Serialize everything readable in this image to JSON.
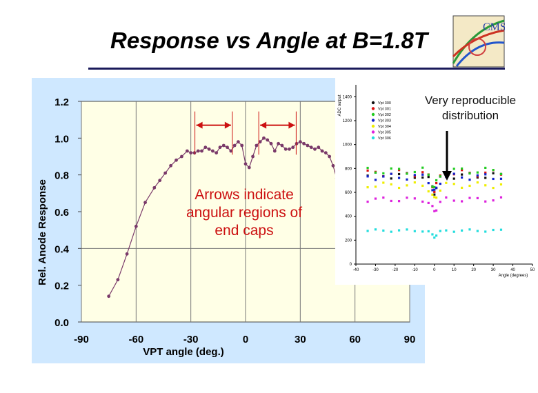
{
  "slide": {
    "title": "Response vs Angle at B=1.8T"
  },
  "logo": {
    "text": "CMS"
  },
  "annotations": {
    "arrows_note": [
      "Arrows indicate",
      "angular regions of",
      "end caps"
    ],
    "repro_note": [
      "Very reproducible",
      "distribution"
    ]
  },
  "chart_data": [
    {
      "type": "line",
      "title": "",
      "xlabel": "VPT angle (deg.)",
      "ylabel": "Rel. Anode Response",
      "xlim": [
        -90,
        90
      ],
      "ylim": [
        0.0,
        1.2
      ],
      "x_ticks": [
        -90,
        -60,
        -30,
        0,
        30,
        60,
        90
      ],
      "y_ticks": [
        0.0,
        0.2,
        0.4,
        0.6,
        0.8,
        1.0,
        1.2
      ],
      "grid": "vertical lines at x ticks, horizontal line at y=0.4",
      "series": [
        {
          "color": "#7a3a6a",
          "x": [
            -75,
            -70,
            -65,
            -60,
            -55,
            -50,
            -47,
            -44,
            -41,
            -38,
            -35,
            -32,
            -30,
            -28,
            -26,
            -24,
            -22,
            -20,
            -18,
            -16,
            -14,
            -12,
            -10,
            -8,
            -6,
            -4,
            -2,
            0,
            2,
            4,
            6,
            8,
            10,
            12,
            14,
            16,
            18,
            20,
            22,
            24,
            26,
            28,
            30,
            32,
            34,
            36,
            38,
            40,
            42,
            44,
            46,
            48,
            50,
            52
          ],
          "y": [
            0.14,
            0.23,
            0.37,
            0.52,
            0.65,
            0.73,
            0.77,
            0.81,
            0.85,
            0.88,
            0.9,
            0.93,
            0.92,
            0.92,
            0.93,
            0.93,
            0.95,
            0.94,
            0.93,
            0.92,
            0.95,
            0.96,
            0.95,
            0.93,
            0.96,
            0.98,
            0.96,
            0.86,
            0.84,
            0.9,
            0.96,
            0.98,
            1.0,
            0.99,
            0.97,
            0.93,
            0.97,
            0.96,
            0.94,
            0.94,
            0.95,
            0.97,
            0.98,
            0.97,
            0.96,
            0.95,
            0.94,
            0.95,
            0.93,
            0.92,
            0.9,
            0.85,
            0.78,
            0.75
          ]
        }
      ],
      "arrows": [
        {
          "x_range": [
            -27,
            -8
          ],
          "y": 1.07
        },
        {
          "x_range": [
            8,
            27
          ],
          "y": 1.07
        }
      ]
    },
    {
      "type": "scatter",
      "title": "",
      "xlabel": "Angle (degrees)",
      "ylabel": "ADC output",
      "xlim": [
        -40,
        50
      ],
      "ylim": [
        0,
        1500
      ],
      "x_ticks": [
        -40,
        -30,
        -20,
        -10,
        0,
        10,
        20,
        30,
        40,
        50
      ],
      "y_ticks": [
        0,
        200,
        400,
        600,
        800,
        1000,
        1200,
        1400
      ],
      "legend_position": "top-left",
      "series": [
        {
          "name": "Vpt 300",
          "color": "#111111",
          "base": 740
        },
        {
          "name": "Vpt 301",
          "color": "#dd1111",
          "base": 760
        },
        {
          "name": "Vpt 302",
          "color": "#22cc22",
          "base": 780
        },
        {
          "name": "Vpt 303",
          "color": "#1122cc",
          "base": 730
        },
        {
          "name": "Vpt 304",
          "color": "#eeee00",
          "base": 660
        },
        {
          "name": "Vpt 305",
          "color": "#dd22dd",
          "base": 540
        },
        {
          "name": "Vpt 306",
          "color": "#22dddd",
          "base": 280
        }
      ],
      "x": [
        -34,
        -30,
        -26,
        -22,
        -18,
        -14,
        -10,
        -6,
        -3,
        -1,
        0,
        1,
        3,
        6,
        10,
        14,
        18,
        22,
        26,
        30,
        34
      ]
    }
  ]
}
